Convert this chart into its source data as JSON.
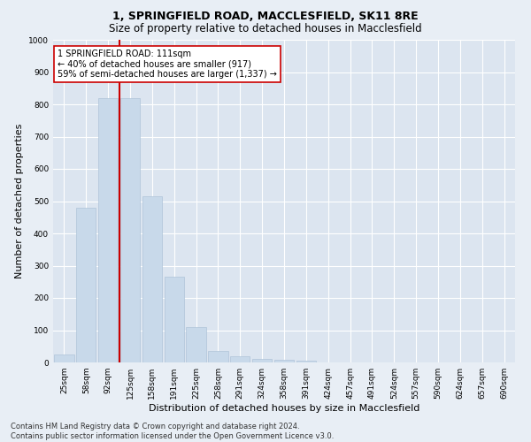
{
  "title": "1, SPRINGFIELD ROAD, MACCLESFIELD, SK11 8RE",
  "subtitle": "Size of property relative to detached houses in Macclesfield",
  "xlabel": "Distribution of detached houses by size in Macclesfield",
  "ylabel": "Number of detached properties",
  "bar_color": "#c8d9ea",
  "bar_edge_color": "#afc4d8",
  "categories": [
    "25sqm",
    "58sqm",
    "92sqm",
    "125sqm",
    "158sqm",
    "191sqm",
    "225sqm",
    "258sqm",
    "291sqm",
    "324sqm",
    "358sqm",
    "391sqm",
    "424sqm",
    "457sqm",
    "491sqm",
    "524sqm",
    "557sqm",
    "590sqm",
    "624sqm",
    "657sqm",
    "690sqm"
  ],
  "values": [
    25,
    480,
    820,
    820,
    515,
    265,
    110,
    35,
    18,
    12,
    7,
    5,
    0,
    0,
    0,
    0,
    0,
    0,
    0,
    0,
    0
  ],
  "ylim": [
    0,
    1000
  ],
  "yticks": [
    0,
    100,
    200,
    300,
    400,
    500,
    600,
    700,
    800,
    900,
    1000
  ],
  "property_line_x": 2.5,
  "property_line_color": "#cc0000",
  "annotation_text": "1 SPRINGFIELD ROAD: 111sqm\n← 40% of detached houses are smaller (917)\n59% of semi-detached houses are larger (1,337) →",
  "annotation_box_color": "#ffffff",
  "annotation_box_edge": "#cc0000",
  "footer_text": "Contains HM Land Registry data © Crown copyright and database right 2024.\nContains public sector information licensed under the Open Government Licence v3.0.",
  "background_color": "#e8eef5",
  "plot_background": "#dce5f0",
  "grid_color": "#ffffff",
  "title_fontsize": 9,
  "subtitle_fontsize": 8.5,
  "tick_fontsize": 6.5,
  "ylabel_fontsize": 8,
  "xlabel_fontsize": 8,
  "footer_fontsize": 6,
  "annotation_fontsize": 7
}
